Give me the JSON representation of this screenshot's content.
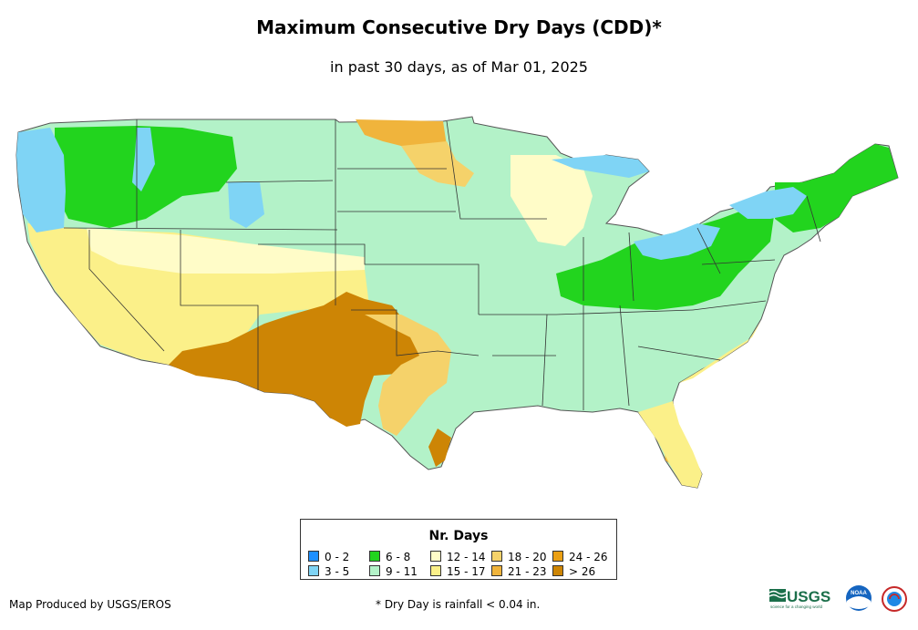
{
  "title": "Maximum Consecutive Dry Days (CDD)*",
  "subtitle": "in past 30 days, as of Mar 01, 2025",
  "legend": {
    "title": "Nr. Days",
    "items": [
      {
        "label": "0 - 2",
        "color": "#1e90ff"
      },
      {
        "label": "3 - 5",
        "color": "#7fd4f5"
      },
      {
        "label": "6 - 8",
        "color": "#22d41e"
      },
      {
        "label": "9 - 11",
        "color": "#b3f2c8"
      },
      {
        "label": "12 - 14",
        "color": "#fffcc8"
      },
      {
        "label": "15 - 17",
        "color": "#fbf089"
      },
      {
        "label": "18 - 20",
        "color": "#f5d26a"
      },
      {
        "label": "21 - 23",
        "color": "#f0b43c"
      },
      {
        "label": "24 - 26",
        "color": "#eba014"
      },
      {
        "label": "> 26",
        "color": "#cd8505"
      }
    ]
  },
  "footer": {
    "credit": "Map Produced by USGS/EROS",
    "note": "* Dry Day is rainfall < 0.04 in."
  },
  "logos": {
    "usgs_text": "USGS",
    "usgs_tagline": "science for a changing world",
    "noaa_text": "NOAA"
  }
}
